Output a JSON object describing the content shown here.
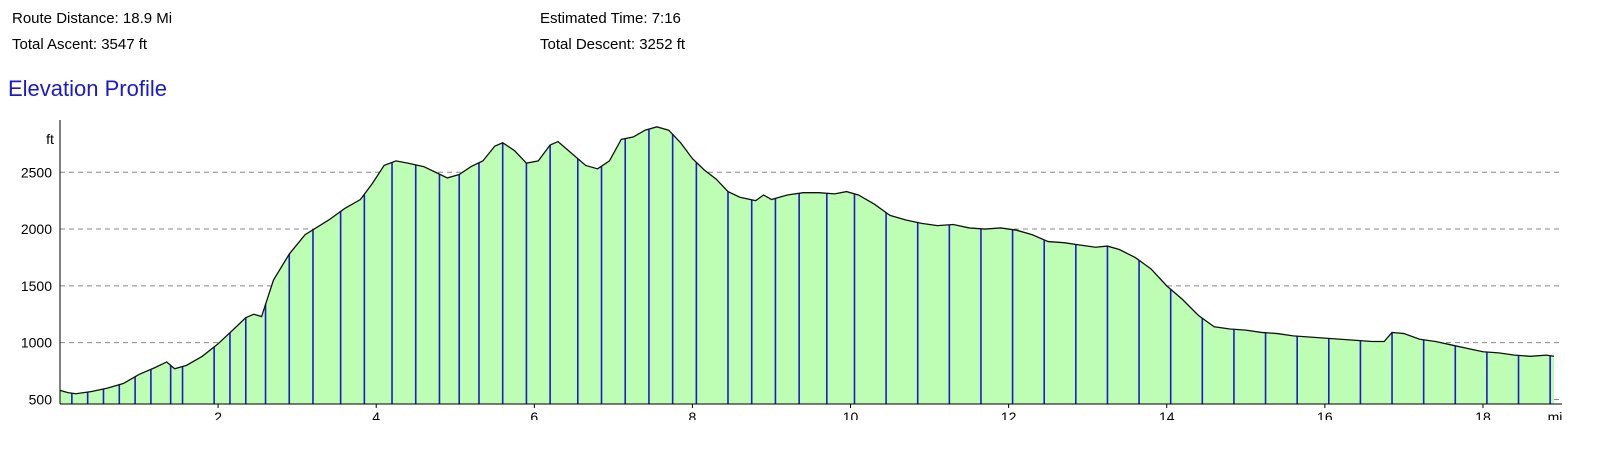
{
  "stats": {
    "route_distance": "Route Distance: 18.9 Mi",
    "total_ascent": "Total Ascent: 3547 ft",
    "estimated_time": "Estimated Time: 7:16",
    "total_descent": "Total Descent: 3252 ft"
  },
  "chart_data": {
    "type": "area",
    "title": "Elevation Profile",
    "xlabel": "mi",
    "ylabel": "ft",
    "xlim": [
      0,
      19.0
    ],
    "ylim": [
      460,
      2960
    ],
    "yticks": [
      500,
      1000,
      1500,
      2000,
      2500
    ],
    "xticks": [
      2,
      4,
      6,
      8,
      10,
      12,
      14,
      16,
      18
    ],
    "grid": "horizontal dashed",
    "fill_color": "#bdfdb4",
    "outline_color": "#111111",
    "marker_color": "#1c1cc8",
    "profile": {
      "x": [
        0,
        0.1,
        0.2,
        0.4,
        0.6,
        0.8,
        1.0,
        1.2,
        1.35,
        1.45,
        1.6,
        1.8,
        2.0,
        2.2,
        2.35,
        2.45,
        2.55,
        2.7,
        2.9,
        3.1,
        3.4,
        3.6,
        3.8,
        3.95,
        4.1,
        4.25,
        4.4,
        4.6,
        4.75,
        4.9,
        5.05,
        5.2,
        5.35,
        5.5,
        5.6,
        5.75,
        5.9,
        6.05,
        6.2,
        6.3,
        6.5,
        6.65,
        6.8,
        6.95,
        7.1,
        7.25,
        7.4,
        7.55,
        7.7,
        7.85,
        8.0,
        8.15,
        8.3,
        8.45,
        8.6,
        8.8,
        8.9,
        9.0,
        9.2,
        9.4,
        9.6,
        9.8,
        9.95,
        10.1,
        10.3,
        10.5,
        10.7,
        10.9,
        11.1,
        11.3,
        11.5,
        11.7,
        11.9,
        12.1,
        12.3,
        12.5,
        12.7,
        12.9,
        13.1,
        13.25,
        13.4,
        13.6,
        13.8,
        14.0,
        14.2,
        14.4,
        14.6,
        14.8,
        15.0,
        15.2,
        15.4,
        15.6,
        15.8,
        16.0,
        16.2,
        16.4,
        16.6,
        16.75,
        16.85,
        17.0,
        17.2,
        17.4,
        17.6,
        17.8,
        18.0,
        18.2,
        18.4,
        18.6,
        18.8,
        18.9
      ],
      "y": [
        580,
        560,
        550,
        570,
        600,
        640,
        720,
        780,
        830,
        770,
        800,
        880,
        990,
        1120,
        1220,
        1250,
        1230,
        1550,
        1780,
        1950,
        2080,
        2180,
        2260,
        2400,
        2560,
        2600,
        2580,
        2550,
        2500,
        2450,
        2480,
        2550,
        2600,
        2730,
        2760,
        2690,
        2580,
        2600,
        2740,
        2770,
        2650,
        2560,
        2530,
        2600,
        2790,
        2810,
        2870,
        2900,
        2870,
        2760,
        2620,
        2520,
        2440,
        2330,
        2280,
        2250,
        2300,
        2260,
        2300,
        2320,
        2320,
        2310,
        2330,
        2300,
        2220,
        2120,
        2080,
        2050,
        2030,
        2040,
        2010,
        2000,
        2010,
        1990,
        1950,
        1890,
        1880,
        1860,
        1840,
        1850,
        1820,
        1750,
        1650,
        1500,
        1380,
        1240,
        1140,
        1120,
        1110,
        1090,
        1080,
        1060,
        1050,
        1040,
        1030,
        1020,
        1010,
        1010,
        1090,
        1080,
        1030,
        1010,
        980,
        950,
        920,
        910,
        890,
        880,
        890,
        880
      ]
    },
    "markers_mi": [
      0.15,
      0.35,
      0.55,
      0.75,
      0.95,
      1.15,
      1.4,
      1.55,
      1.95,
      2.15,
      2.35,
      2.6,
      2.9,
      3.2,
      3.55,
      3.85,
      4.2,
      4.5,
      4.8,
      5.05,
      5.3,
      5.6,
      5.9,
      6.2,
      6.55,
      6.85,
      7.15,
      7.45,
      7.75,
      8.05,
      8.45,
      8.75,
      9.05,
      9.35,
      9.7,
      10.05,
      10.45,
      10.85,
      11.25,
      11.65,
      12.05,
      12.45,
      12.85,
      13.25,
      13.65,
      14.05,
      14.45,
      14.85,
      15.25,
      15.65,
      16.05,
      16.45,
      16.85,
      17.25,
      17.65,
      18.05,
      18.45,
      18.85
    ]
  }
}
